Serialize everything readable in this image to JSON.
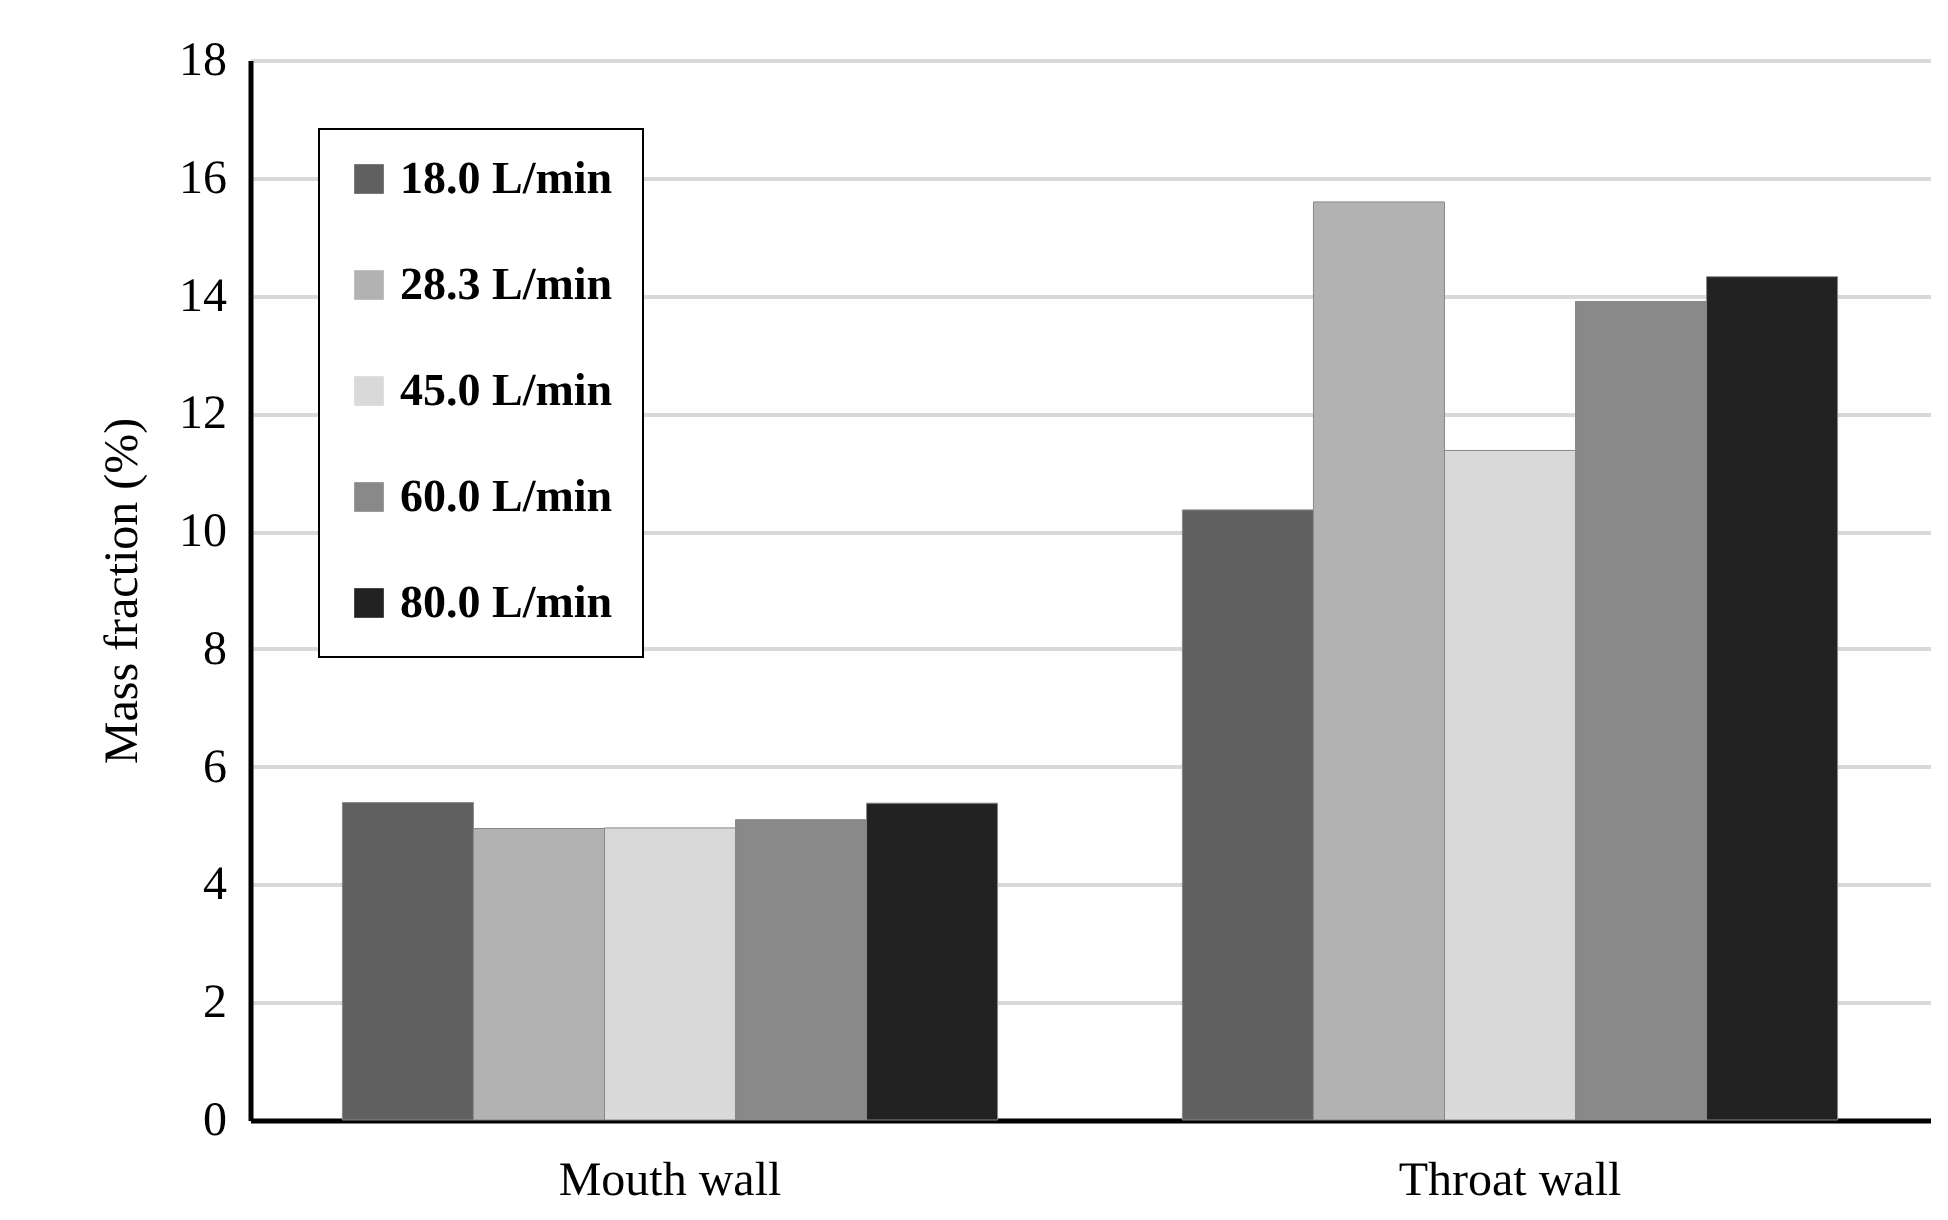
{
  "chart_data": {
    "type": "bar",
    "ylabel": "Mass fraction (%)",
    "categories": [
      "Mouth wall",
      "Throat wall"
    ],
    "series": [
      {
        "name": "18.0 L/min",
        "color": "#606060",
        "values": [
          5.39,
          10.36
        ]
      },
      {
        "name": "28.3 L/min",
        "color": "#b2b2b2",
        "values": [
          4.95,
          15.59
        ]
      },
      {
        "name": "45.0 L/min",
        "color": "#d9d9d9",
        "values": [
          4.96,
          11.37
        ]
      },
      {
        "name": "60.0 L/min",
        "color": "#898989",
        "values": [
          5.1,
          13.9
        ]
      },
      {
        "name": "80.0 L/min",
        "color": "#222222",
        "values": [
          5.38,
          14.32
        ]
      }
    ],
    "ylim": [
      0,
      18
    ],
    "yticks": [
      0,
      2,
      4,
      6,
      8,
      10,
      12,
      14,
      16,
      18
    ],
    "grid": "y",
    "legend": "top left"
  }
}
